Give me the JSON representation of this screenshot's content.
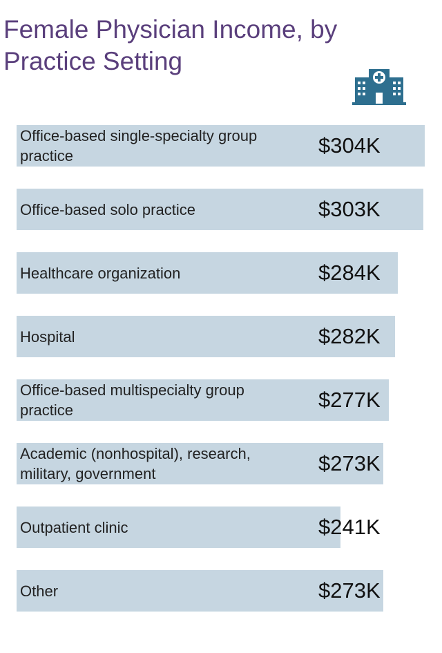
{
  "chart_data": {
    "type": "bar",
    "orientation": "horizontal",
    "title": "Female Physician Income, by Practice Setting",
    "categories": [
      "Office-based single-specialty group practice",
      "Office-based solo practice",
      "Healthcare organization",
      "Hospital",
      "Office-based multispecialty group practice",
      "Academic (nonhospital), research, military, government",
      "Outpatient clinic",
      "Other"
    ],
    "values": [
      304,
      303,
      284,
      282,
      277,
      273,
      241,
      273
    ],
    "value_labels": [
      "$304K",
      "$303K",
      "$284K",
      "$282K",
      "$277K",
      "$273K",
      "$241K",
      "$273K"
    ],
    "color": "#c6d6e1"
  }
}
